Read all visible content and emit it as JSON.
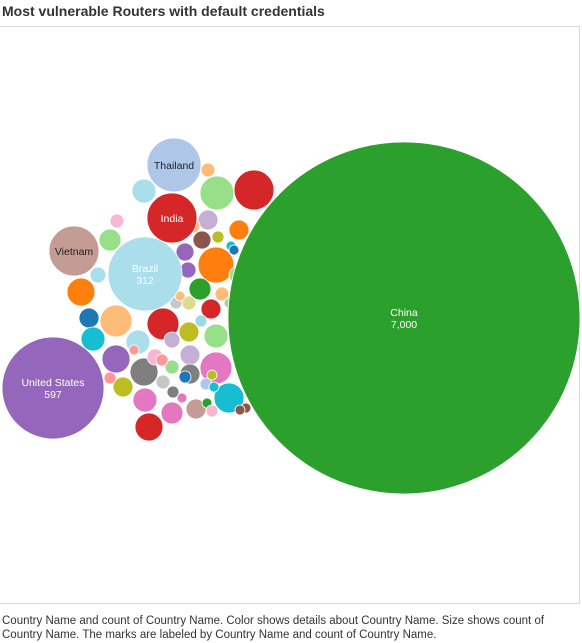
{
  "title": "Most vulnerable Routers with default credentials",
  "caption": "Country Name and count of Country Name.  Color shows details about Country Name.  Size shows count of Country Name.  The marks are labeled by Country Name and count of Country Name.",
  "chart_data": {
    "type": "bubble",
    "size_measure": "count of Country Name",
    "color_measure": "Country Name",
    "labeled_points": [
      {
        "country": "China",
        "count": 7000,
        "count_label": "7,000",
        "color": "#2ca02c"
      },
      {
        "country": "United States",
        "count": 597,
        "count_label": "597",
        "color": "#9467bd"
      },
      {
        "country": "Brazil",
        "count": 312,
        "count_label": "312",
        "color": "#aadeea"
      },
      {
        "country": "Thailand",
        "count_label": "",
        "color": "#aec7e8",
        "label_color": "#222222"
      },
      {
        "country": "Vietnam",
        "count_label": "",
        "color": "#c49c94",
        "label_color": "#222222"
      },
      {
        "country": "India",
        "count_label": "",
        "color": "#d62728",
        "label_color": "#ffffff"
      }
    ],
    "unlabeled_colors": [
      "#d62728",
      "#98df8a",
      "#aadeea",
      "#ffbb78",
      "#98df8a",
      "#c5b0d5",
      "#9467bd",
      "#ff7f0e",
      "#8c564b",
      "#ffbb78",
      "#bcbd22",
      "#f7b6d2",
      "#98df8a",
      "#aadeea",
      "#ff7f0e",
      "#17becf",
      "#9467bd",
      "#1f77b4",
      "#2ca02c",
      "#ffbb78",
      "#d62728",
      "#ff7f0e",
      "#1f77b4",
      "#17becf",
      "#ffbb78",
      "#d62728",
      "#bcbd22",
      "#98df8a",
      "#aadeea",
      "#c5b0d5",
      "#e377c2",
      "#9467bd",
      "#7f7f7f",
      "#bcbd22",
      "#7f7f7f",
      "#ff9896",
      "#98df8a",
      "#ff9896",
      "#17becf",
      "#e377c2",
      "#c7c7c7",
      "#f7b6d2",
      "#7f7f7f",
      "#8c564b",
      "#d62728",
      "#e377c2",
      "#c49c94",
      "#dbdb8d",
      "#9edae5",
      "#c7c7c7",
      "#ffbb78",
      "#2ca02c",
      "#aec7e8",
      "#bcbd22",
      "#f7b6d2",
      "#17becf",
      "#c5b0d5",
      "#ff9896",
      "#1f77b4",
      "#98df8a",
      "#e377c2",
      "#8c564b"
    ]
  }
}
